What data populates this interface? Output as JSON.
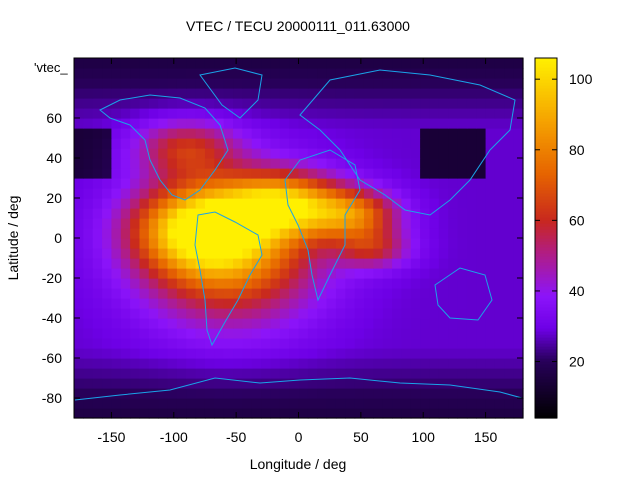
{
  "chart_data": {
    "type": "heatmap",
    "title": "VTEC / TECU 20000111_011.63000",
    "xlabel": "Longitude / deg",
    "ylabel": "Latitude / deg",
    "stray_label": "'vtec_",
    "xlim": [
      -180,
      180
    ],
    "ylim": [
      -90,
      90
    ],
    "x_ticks": [
      -150,
      -100,
      -50,
      0,
      50,
      100,
      150
    ],
    "y_ticks": [
      -80,
      -60,
      -40,
      -20,
      0,
      20,
      40,
      60
    ],
    "colorbar": {
      "range": [
        4,
        106
      ],
      "ticks": [
        20,
        40,
        60,
        80,
        100
      ],
      "colormap": "black-purple-red-orange-yellow"
    },
    "regions": [
      {
        "lon": -55,
        "lat": -5,
        "value": 84,
        "sx": 70,
        "sy": 35
      },
      {
        "lon": -80,
        "lat": 5,
        "value": 80,
        "sx": 50,
        "sy": 20
      },
      {
        "lon": -10,
        "lat": 17,
        "value": 82,
        "sx": 45,
        "sy": 15
      },
      {
        "lon": 45,
        "lat": 12,
        "value": 70,
        "sx": 35,
        "sy": 12
      },
      {
        "lon": -90,
        "lat": 45,
        "value": 58,
        "sx": 40,
        "sy": 14
      },
      {
        "lon": 60,
        "lat": -5,
        "value": 55,
        "sx": 30,
        "sy": 10
      }
    ],
    "background_value": 28
  },
  "colors": {
    "coastline": "#1aa3e8",
    "frame": "#000000"
  }
}
